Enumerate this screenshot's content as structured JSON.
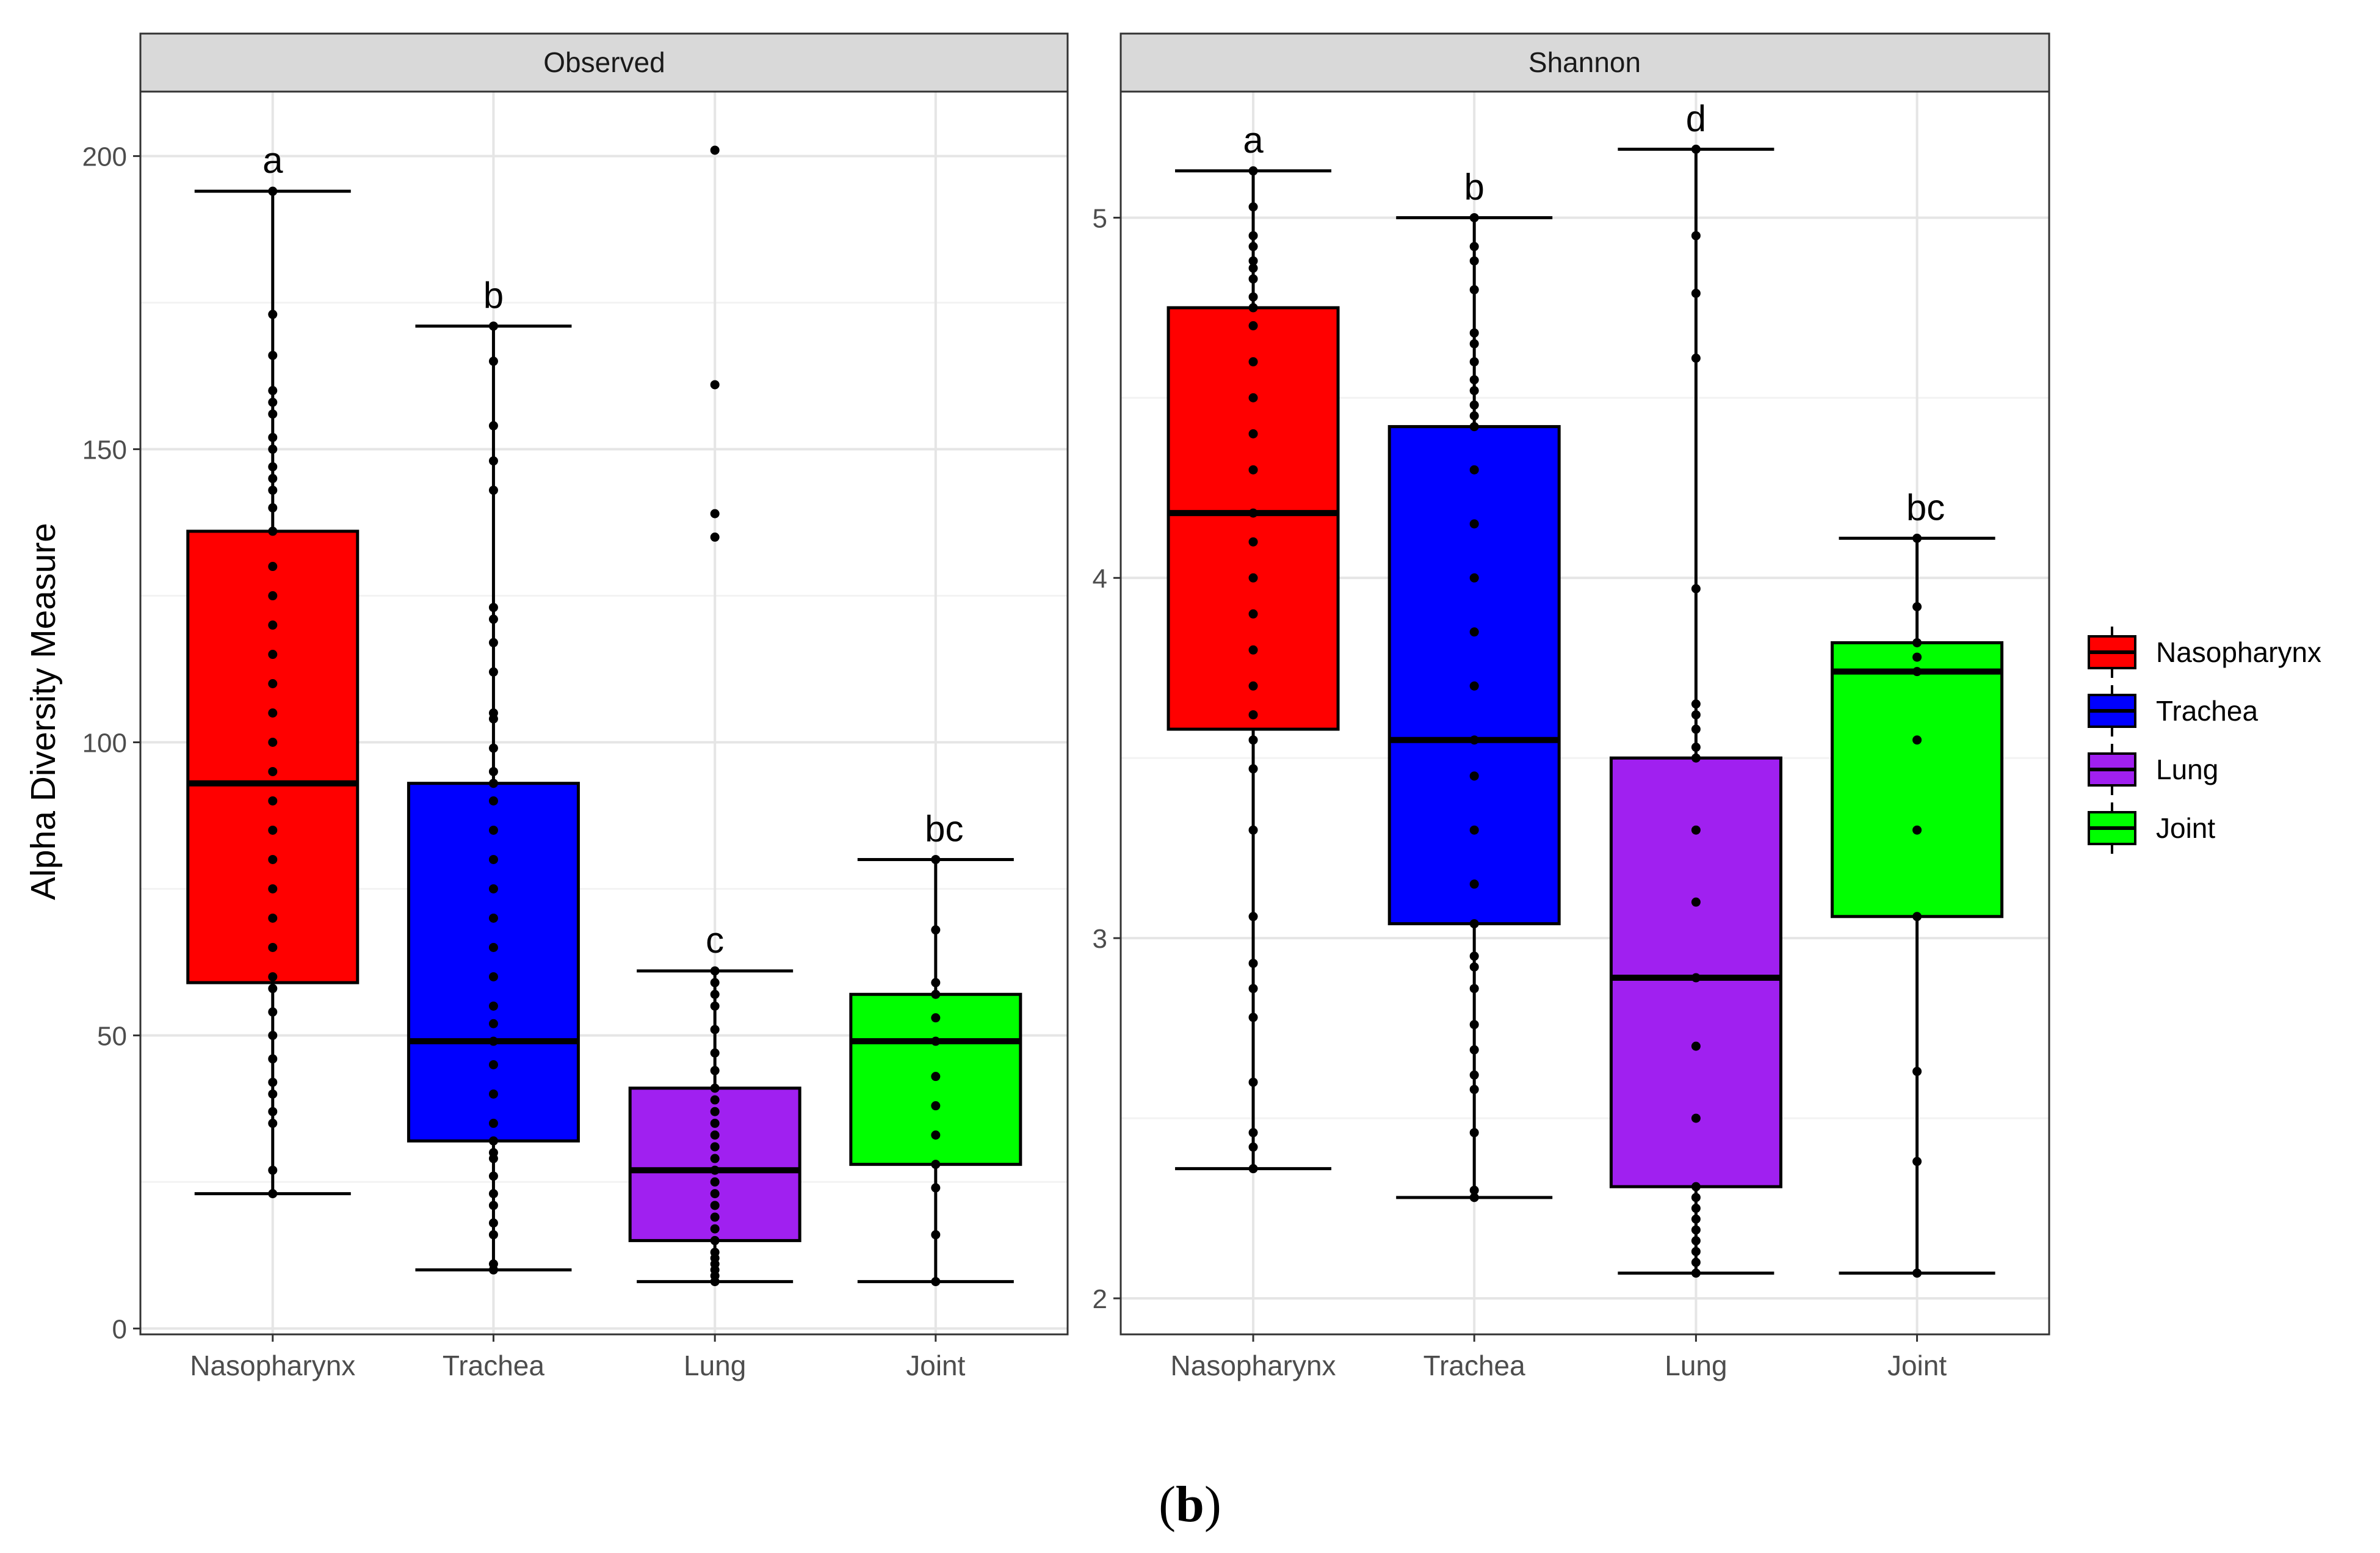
{
  "chart_data": [
    {
      "type": "boxplot",
      "panel_title": "Observed",
      "ylabel": "Alpha Diversity Measure",
      "xlabel": "",
      "ylim": [
        -1,
        211
      ],
      "yticks": [
        0,
        50,
        100,
        150,
        200
      ],
      "categories": [
        "Nasopharynx",
        "Trachea",
        "Lung",
        "Joint"
      ],
      "boxes": [
        {
          "group": "Nasopharynx",
          "whisker_low": 23,
          "q1": 59,
          "median": 93,
          "q3": 136,
          "whisker_high": 194,
          "letter": "a",
          "points": [
            23,
            27,
            35,
            37,
            40,
            42,
            46,
            50,
            54,
            58,
            60,
            65,
            70,
            75,
            80,
            85,
            90,
            95,
            100,
            105,
            110,
            115,
            120,
            125,
            130,
            136,
            140,
            143,
            145,
            147,
            150,
            152,
            156,
            158,
            160,
            166,
            173,
            194
          ]
        },
        {
          "group": "Trachea",
          "whisker_low": 10,
          "q1": 32,
          "median": 49,
          "q3": 93,
          "whisker_high": 171,
          "letter": "b",
          "points": [
            10,
            11,
            16,
            18,
            21,
            23,
            26,
            29,
            30,
            32,
            35,
            40,
            45,
            49,
            52,
            55,
            60,
            65,
            70,
            75,
            80,
            85,
            90,
            93,
            95,
            99,
            104,
            105,
            112,
            117,
            121,
            123,
            143,
            148,
            154,
            165,
            171
          ]
        },
        {
          "group": "Lung",
          "whisker_low": 8,
          "q1": 15,
          "median": 27,
          "q3": 41,
          "whisker_high": 61,
          "letter": "c",
          "points": [
            8,
            9,
            10,
            11,
            12,
            13,
            15,
            17,
            19,
            21,
            23,
            25,
            27,
            29,
            31,
            33,
            35,
            37,
            39,
            41,
            44,
            47,
            51,
            55,
            57,
            59,
            61,
            135,
            139,
            161,
            201
          ]
        },
        {
          "group": "Joint",
          "whisker_low": 8,
          "q1": 28,
          "median": 49,
          "q3": 57,
          "whisker_high": 80,
          "letter": "bc",
          "points": [
            8,
            16,
            24,
            28,
            33,
            38,
            43,
            49,
            53,
            57,
            59,
            68,
            80
          ]
        }
      ]
    },
    {
      "type": "boxplot",
      "panel_title": "Shannon",
      "ylim": [
        1.9,
        5.35
      ],
      "yticks": [
        2,
        3,
        4,
        5
      ],
      "categories": [
        "Nasopharynx",
        "Trachea",
        "Lung",
        "Joint"
      ],
      "boxes": [
        {
          "group": "Nasopharynx",
          "whisker_low": 2.36,
          "q1": 3.58,
          "median": 4.18,
          "q3": 4.75,
          "whisker_high": 5.13,
          "letter": "a",
          "points": [
            2.36,
            2.42,
            2.46,
            2.6,
            2.78,
            2.86,
            2.93,
            3.06,
            3.3,
            3.47,
            3.55,
            3.62,
            3.7,
            3.8,
            3.9,
            4.0,
            4.1,
            4.18,
            4.3,
            4.4,
            4.5,
            4.6,
            4.7,
            4.75,
            4.78,
            4.83,
            4.86,
            4.88,
            4.92,
            4.95,
            5.03,
            5.13
          ]
        },
        {
          "group": "Trachea",
          "whisker_low": 2.28,
          "q1": 3.04,
          "median": 3.55,
          "q3": 4.42,
          "whisker_high": 5.0,
          "letter": "b",
          "points": [
            2.28,
            2.3,
            2.46,
            2.58,
            2.62,
            2.69,
            2.76,
            2.86,
            2.92,
            2.95,
            3.04,
            3.15,
            3.3,
            3.45,
            3.55,
            3.7,
            3.85,
            4.0,
            4.15,
            4.3,
            4.42,
            4.45,
            4.48,
            4.52,
            4.55,
            4.6,
            4.65,
            4.68,
            4.8,
            4.88,
            4.92,
            5.0
          ]
        },
        {
          "group": "Lung",
          "whisker_low": 2.07,
          "q1": 2.31,
          "median": 2.89,
          "q3": 3.5,
          "whisker_high": 5.19,
          "letter": "d",
          "points": [
            2.07,
            2.1,
            2.13,
            2.16,
            2.19,
            2.22,
            2.25,
            2.28,
            2.31,
            2.5,
            2.7,
            2.89,
            3.1,
            3.3,
            3.5,
            3.53,
            3.58,
            3.62,
            3.65,
            3.97,
            4.61,
            4.79,
            4.95,
            5.19
          ]
        },
        {
          "group": "Joint",
          "whisker_low": 2.07,
          "q1": 3.06,
          "median": 3.74,
          "q3": 3.82,
          "whisker_high": 4.11,
          "letter": "bc",
          "points": [
            2.07,
            2.38,
            2.63,
            3.06,
            3.3,
            3.55,
            3.74,
            3.78,
            3.82,
            3.92,
            4.11
          ]
        }
      ]
    }
  ],
  "legend": {
    "position": "right",
    "items": [
      {
        "label": "Nasopharynx",
        "color": "#ff0000"
      },
      {
        "label": "Trachea",
        "color": "#0000ff"
      },
      {
        "label": "Lung",
        "color": "#a020f0"
      },
      {
        "label": "Joint",
        "color": "#00ff00"
      }
    ]
  },
  "colors": {
    "Nasopharynx": "#ff0000",
    "Trachea": "#0000ff",
    "Lung": "#a020f0",
    "Joint": "#00ff00",
    "strip": "#d9d9d9",
    "grid_major": "#e5e5e5",
    "grid_minor": "#f3f3f3"
  },
  "caption": "(b)"
}
